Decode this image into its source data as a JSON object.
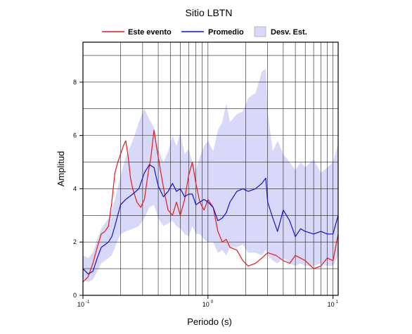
{
  "chart_data": {
    "type": "line",
    "title": "Sitio LBTN",
    "xlabel": "Periodo (s)",
    "ylabel": "Amplitud",
    "x_scale": "log",
    "xlim": [
      0.1,
      11
    ],
    "ylim": [
      0,
      9.5
    ],
    "grid": true,
    "legend_position": "top",
    "x_tick_labels": [
      {
        "base": "10",
        "exp": "-1",
        "value": 0.1
      },
      {
        "base": "10",
        "exp": "0",
        "value": 1
      },
      {
        "base": "10",
        "exp": "1",
        "value": 10
      }
    ],
    "y_ticks": [
      0,
      2,
      4,
      6,
      8
    ],
    "y_tick_labels": [
      "0",
      "2",
      "4",
      "6",
      "8"
    ],
    "legend": [
      {
        "label": "Este evento",
        "kind": "line",
        "color": "#e8191a"
      },
      {
        "label": "Promedio",
        "kind": "line",
        "color": "#1010d0"
      },
      {
        "label": "Desv. Est.",
        "kind": "band",
        "color": "#d8d8f8"
      }
    ],
    "series": [
      {
        "name": "Este evento",
        "color": "#e8191a",
        "x": [
          0.1,
          0.11,
          0.12,
          0.13,
          0.14,
          0.15,
          0.16,
          0.17,
          0.18,
          0.19,
          0.2,
          0.21,
          0.22,
          0.23,
          0.24,
          0.25,
          0.27,
          0.29,
          0.31,
          0.33,
          0.35,
          0.37,
          0.39,
          0.42,
          0.45,
          0.48,
          0.52,
          0.56,
          0.6,
          0.65,
          0.7,
          0.75,
          0.8,
          0.86,
          0.93,
          1.0,
          1.1,
          1.2,
          1.3,
          1.4,
          1.5,
          1.7,
          1.9,
          2.1,
          2.4,
          2.7,
          3.0,
          3.5,
          4.0,
          4.5,
          5.0,
          6.0,
          7.0,
          8.0,
          9.0,
          10.0,
          11.0
        ],
        "y": [
          0.5,
          0.7,
          1.2,
          1.8,
          2.3,
          2.4,
          2.6,
          3.5,
          4.6,
          5.0,
          5.3,
          5.6,
          5.8,
          5.2,
          4.4,
          4.0,
          3.5,
          3.3,
          3.6,
          4.5,
          5.2,
          6.2,
          5.5,
          4.6,
          3.8,
          3.2,
          3.0,
          3.5,
          3.0,
          3.6,
          4.5,
          5.0,
          4.2,
          3.5,
          3.2,
          3.6,
          3.3,
          2.4,
          2.0,
          2.1,
          1.8,
          1.7,
          1.3,
          1.1,
          1.2,
          1.4,
          1.6,
          1.5,
          1.3,
          1.2,
          1.5,
          1.3,
          1.0,
          1.1,
          1.4,
          1.3,
          2.3
        ]
      },
      {
        "name": "Promedio",
        "color": "#1010d0",
        "x": [
          0.1,
          0.11,
          0.12,
          0.13,
          0.14,
          0.15,
          0.16,
          0.17,
          0.18,
          0.2,
          0.22,
          0.25,
          0.28,
          0.31,
          0.34,
          0.37,
          0.4,
          0.44,
          0.48,
          0.52,
          0.56,
          0.6,
          0.65,
          0.7,
          0.75,
          0.8,
          0.86,
          0.93,
          1.0,
          1.1,
          1.2,
          1.3,
          1.4,
          1.5,
          1.7,
          1.9,
          2.1,
          2.4,
          2.7,
          2.9,
          3.0,
          3.3,
          3.6,
          4.0,
          4.5,
          5.0,
          5.5,
          6.0,
          7.0,
          8.0,
          9.0,
          10.0,
          11.0
        ],
        "y": [
          1.0,
          0.8,
          0.9,
          1.4,
          1.8,
          1.9,
          2.0,
          2.2,
          2.6,
          3.4,
          3.6,
          3.8,
          4.0,
          4.6,
          4.9,
          4.8,
          4.1,
          3.7,
          3.9,
          4.2,
          3.9,
          4.0,
          3.7,
          3.8,
          3.8,
          3.4,
          3.5,
          3.6,
          3.5,
          3.3,
          2.8,
          2.9,
          3.1,
          3.5,
          3.9,
          4.0,
          3.9,
          4.0,
          4.2,
          4.4,
          3.5,
          2.9,
          2.4,
          3.2,
          2.8,
          2.2,
          2.5,
          2.4,
          2.3,
          2.4,
          2.3,
          2.3,
          3.0
        ]
      },
      {
        "name": "Desv. Est.",
        "color": "#d8d8f8",
        "x": [
          0.1,
          0.11,
          0.12,
          0.13,
          0.14,
          0.15,
          0.16,
          0.17,
          0.18,
          0.2,
          0.22,
          0.25,
          0.28,
          0.31,
          0.34,
          0.37,
          0.4,
          0.44,
          0.48,
          0.52,
          0.56,
          0.6,
          0.65,
          0.7,
          0.75,
          0.8,
          0.86,
          0.93,
          1.0,
          1.1,
          1.2,
          1.3,
          1.4,
          1.5,
          1.7,
          1.9,
          2.1,
          2.4,
          2.7,
          2.9,
          3.0,
          3.3,
          3.6,
          4.0,
          4.5,
          5.0,
          5.5,
          6.0,
          7.0,
          8.0,
          9.0,
          10.0,
          11.0
        ],
        "upper": [
          1.5,
          1.4,
          1.6,
          2.1,
          2.5,
          2.7,
          2.9,
          3.2,
          3.6,
          4.5,
          5.2,
          5.8,
          6.5,
          7.0,
          6.6,
          6.3,
          5.5,
          5.0,
          5.4,
          6.0,
          5.6,
          6.1,
          5.3,
          5.5,
          5.0,
          4.7,
          5.2,
          5.6,
          5.8,
          5.4,
          6.2,
          6.5,
          7.2,
          6.5,
          6.8,
          6.9,
          7.4,
          7.6,
          8.4,
          8.5,
          6.9,
          5.4,
          5.8,
          5.3,
          5.0,
          4.7,
          5.0,
          4.8,
          5.1,
          4.6,
          4.8,
          5.0,
          5.7
        ],
        "lower": [
          0.6,
          0.5,
          0.6,
          0.9,
          1.2,
          1.3,
          1.4,
          1.5,
          1.8,
          2.3,
          2.4,
          2.5,
          2.6,
          2.9,
          3.3,
          3.4,
          2.9,
          2.6,
          2.7,
          2.8,
          2.6,
          2.5,
          2.3,
          2.2,
          2.6,
          2.3,
          2.3,
          2.1,
          2.0,
          2.0,
          1.6,
          1.7,
          1.5,
          1.8,
          1.8,
          1.9,
          1.6,
          1.6,
          1.5,
          1.7,
          1.5,
          1.3,
          1.2,
          1.4,
          1.2,
          1.1,
          1.2,
          1.1,
          1.1,
          1.2,
          1.1,
          1.1,
          1.5
        ]
      }
    ]
  }
}
